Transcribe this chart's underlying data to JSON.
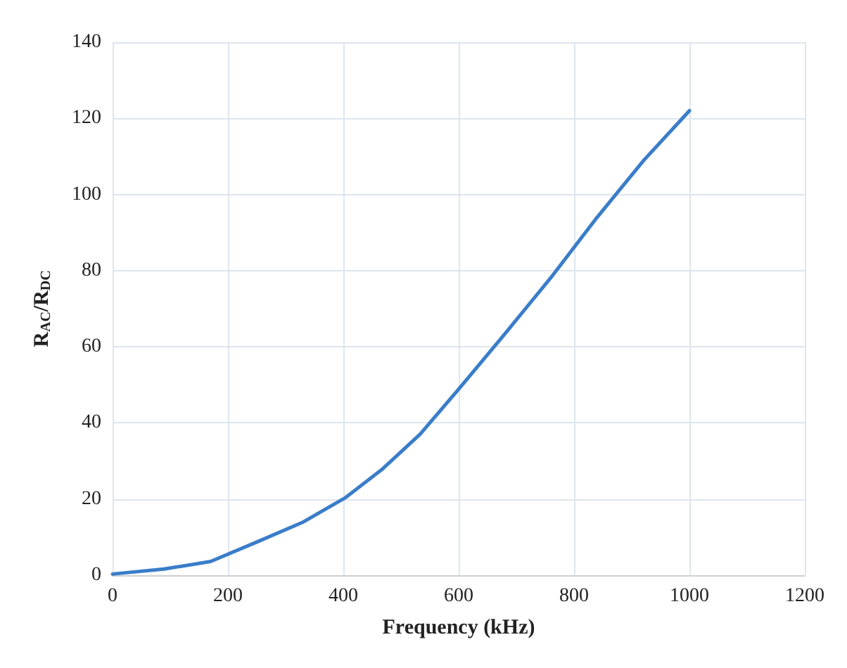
{
  "chart_data": {
    "type": "line",
    "xlabel": "Frequency (kHz)",
    "ylabel": "R$_{AC}$/R$_{DC}$",
    "x": [
      0,
      89,
      170,
      250,
      331,
      404,
      468,
      533,
      598,
      678,
      759,
      840,
      921,
      1000
    ],
    "series": [
      {
        "color": "#3a7dc9",
        "values": [
          0.3,
          1.6,
          3.6,
          8.7,
          14,
          20.4,
          27.9,
          37,
          48.5,
          63,
          78,
          94,
          109,
          122
        ]
      }
    ],
    "xlim": [
      0,
      1200
    ],
    "xticks": [
      0,
      200,
      400,
      600,
      800,
      1000,
      1200
    ],
    "ylim": [
      0,
      140
    ],
    "yticks": [
      0,
      20,
      40,
      60,
      80,
      100,
      120,
      140
    ],
    "grid": true,
    "marker": "none",
    "line_style": "solid"
  }
}
